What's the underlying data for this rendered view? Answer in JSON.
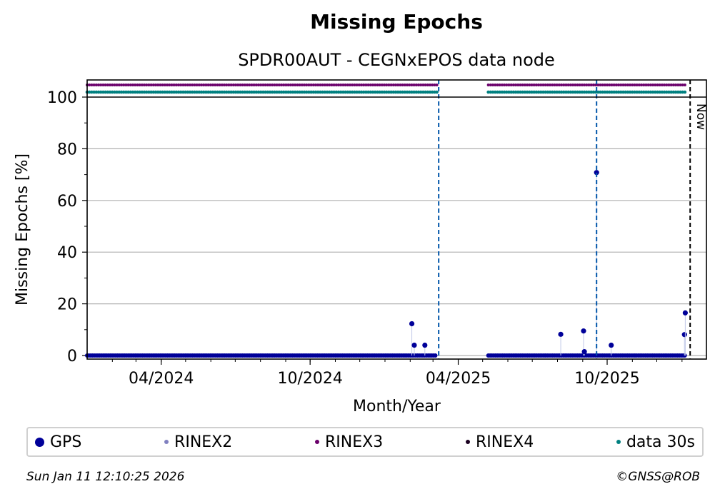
{
  "title": "Missing Epochs",
  "subtitle": "SPDR00AUT - CEGNxEPOS data node",
  "footer": {
    "timestamp": "Sun Jan 11 12:10:25 2026",
    "copyright": "©GNSS@ROB"
  },
  "colors": {
    "gps": "#000099",
    "rinex2": "#8080c0",
    "rinex3": "#6b006b",
    "rinex4": "#1a0020",
    "data30s": "#008080",
    "event_line": "#0055aa",
    "now_line": "#000000",
    "grid": "#b0b0b0"
  },
  "legend": [
    {
      "key": "gps",
      "label": "GPS",
      "size": "large"
    },
    {
      "key": "rinex2",
      "label": "RINEX2",
      "size": "small"
    },
    {
      "key": "rinex3",
      "label": "RINEX3",
      "size": "small"
    },
    {
      "key": "rinex4",
      "label": "RINEX4",
      "size": "small"
    },
    {
      "key": "data30s",
      "label": "data 30s",
      "size": "small"
    }
  ],
  "chart_data": {
    "type": "scatter",
    "title": "Missing Epochs",
    "subtitle": "SPDR00AUT - CEGNxEPOS data node",
    "xlabel": "Month/Year",
    "ylabel": "Missing Epochs [%]",
    "xlim": [
      "2024-01-01",
      "2026-01-31"
    ],
    "ylim": [
      0,
      100
    ],
    "yticks": [
      0,
      20,
      40,
      60,
      80,
      100
    ],
    "xticks": [
      {
        "date": "2024-04-01",
        "label": "04/2024"
      },
      {
        "date": "2024-10-01",
        "label": "10/2024"
      },
      {
        "date": "2025-04-01",
        "label": "04/2025"
      },
      {
        "date": "2025-10-01",
        "label": "10/2025"
      }
    ],
    "grid": true,
    "legend_position": "bottom",
    "data_periods": [
      {
        "start": "2024-01-01",
        "end": "2025-03-06"
      },
      {
        "start": "2025-05-08",
        "end": "2026-01-06"
      }
    ],
    "event_lines": [
      "2025-03-08",
      "2025-09-18"
    ],
    "now_line": {
      "date": "2026-01-11",
      "label": "Now"
    },
    "gps_outliers": [
      {
        "date": "2025-02-03",
        "value": 12.3
      },
      {
        "date": "2025-02-06",
        "value": 4.0
      },
      {
        "date": "2025-02-19",
        "value": 4.0
      },
      {
        "date": "2025-08-05",
        "value": 8.2
      },
      {
        "date": "2025-09-02",
        "value": 9.5
      },
      {
        "date": "2025-09-03",
        "value": 1.5
      },
      {
        "date": "2025-09-18",
        "value": 70.8
      },
      {
        "date": "2025-10-06",
        "value": 4.0
      },
      {
        "date": "2026-01-04",
        "value": 8.1
      },
      {
        "date": "2026-01-05",
        "value": 16.5
      }
    ],
    "series": [
      {
        "name": "GPS",
        "baseline_value": 0
      },
      {
        "name": "RINEX3",
        "availability": "periods"
      },
      {
        "name": "data 30s",
        "availability": "periods"
      }
    ]
  }
}
